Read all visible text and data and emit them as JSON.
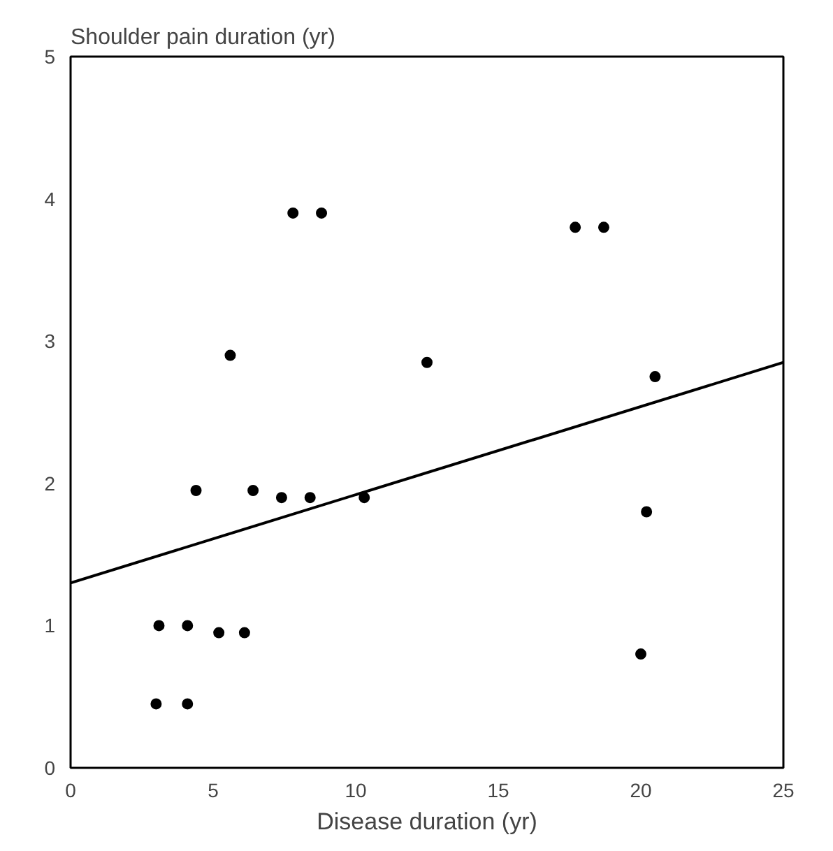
{
  "chart_data": {
    "type": "scatter",
    "ylabel": "Shoulder pain duration (yr)",
    "xlabel": "Disease duration (yr)",
    "xlim": [
      0,
      25
    ],
    "ylim": [
      0,
      5
    ],
    "xticks": [
      0,
      5,
      10,
      15,
      20,
      25
    ],
    "yticks": [
      0,
      1,
      2,
      3,
      4,
      5
    ],
    "grid": false,
    "series": [
      {
        "color": "#000000",
        "marker": "circle",
        "x": [
          3.0,
          4.1,
          3.1,
          4.1,
          5.2,
          6.1,
          4.4,
          6.4,
          7.4,
          8.4,
          10.3,
          5.6,
          12.5,
          7.8,
          8.8,
          17.7,
          18.7,
          20.5,
          20.2,
          20.0
        ],
        "values": [
          0.45,
          0.45,
          1.0,
          1.0,
          0.95,
          0.95,
          1.95,
          1.95,
          1.9,
          1.9,
          1.9,
          2.9,
          2.85,
          3.9,
          3.9,
          3.8,
          3.8,
          2.75,
          1.8,
          0.8
        ]
      },
      {
        "type": "line",
        "marker": "none",
        "color": "#000000",
        "x": [
          0,
          25
        ],
        "values": [
          1.3,
          2.85
        ]
      }
    ]
  }
}
